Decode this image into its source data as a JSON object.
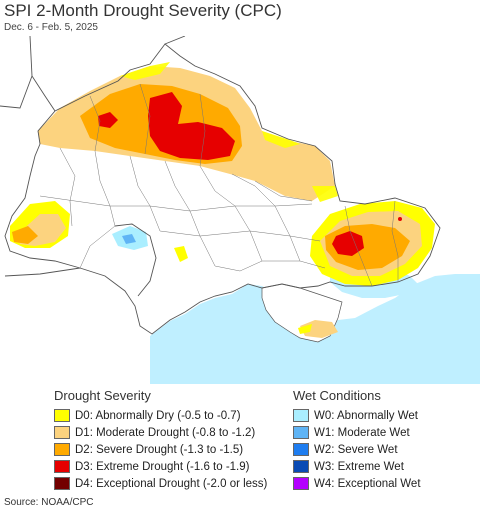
{
  "header": {
    "title": "SPI 2-Month Drought Severity (CPC)",
    "subtitle": "Dec. 6 - Feb. 5, 2025"
  },
  "map": {
    "land_color": "#ffffff",
    "sea_color": "#bfefff",
    "border_color": "#555555"
  },
  "legend": {
    "drought": {
      "heading": "Drought Severity",
      "items": [
        {
          "label": "D0: Abnormally Dry (-0.5 to -0.7)",
          "color": "#ffff00"
        },
        {
          "label": "D1: Moderate Drought (-0.8 to -1.2)",
          "color": "#fcd37f"
        },
        {
          "label": "D2: Severe Drought (-1.3 to -1.5)",
          "color": "#ffaa00"
        },
        {
          "label": "D3: Extreme Drought (-1.6 to -1.9)",
          "color": "#e60000"
        },
        {
          "label": "D4: Exceptional Drought (-2.0 or less)",
          "color": "#730000"
        }
      ]
    },
    "wet": {
      "heading": "Wet Conditions",
      "items": [
        {
          "label": "W0: Abnormally Wet",
          "color": "#aaeeff"
        },
        {
          "label": "W1: Moderate Wet",
          "color": "#5fb4f5"
        },
        {
          "label": "W2: Severe Wet",
          "color": "#1e7df0"
        },
        {
          "label": "W3: Extreme Wet",
          "color": "#0a4bb4"
        },
        {
          "label": "W4: Exceptional Wet",
          "color": "#b400ff"
        }
      ]
    }
  },
  "footer": {
    "source": "Source: NOAA/CPC"
  }
}
